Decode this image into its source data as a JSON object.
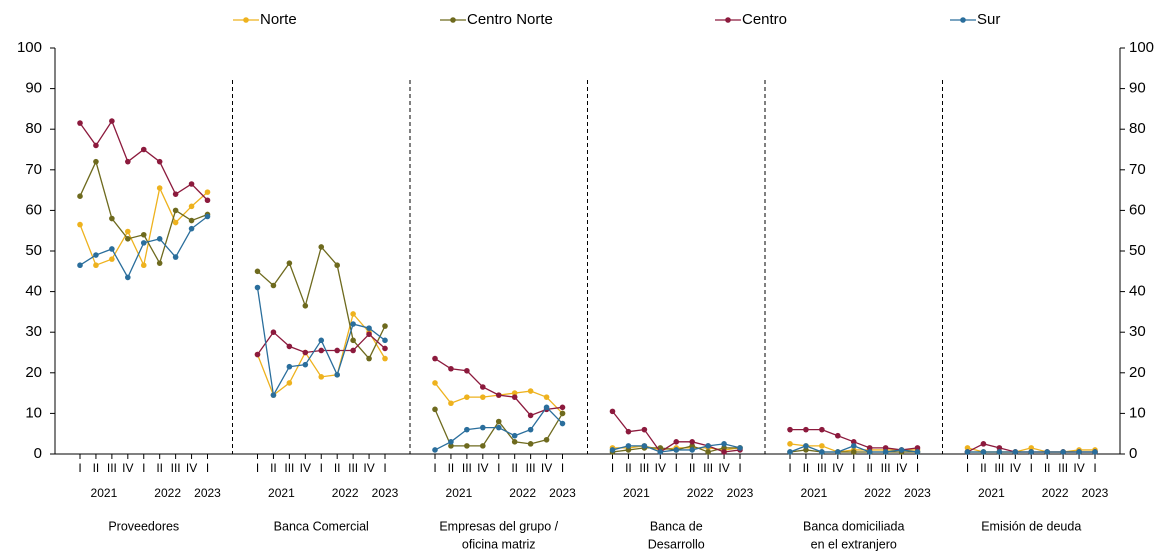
{
  "chart_data": {
    "type": "line",
    "ylim": [
      0,
      100
    ],
    "yticks": [
      0,
      10,
      20,
      30,
      40,
      50,
      60,
      70,
      80,
      90,
      100
    ],
    "y2lim": [
      0,
      100
    ],
    "y2ticks": [
      0,
      10,
      20,
      30,
      40,
      50,
      60,
      70,
      80,
      90,
      100
    ],
    "categories": [
      "I",
      "II",
      "III",
      "IV",
      "I",
      "II",
      "III",
      "IV",
      "I"
    ],
    "years": [
      "2021",
      "2022",
      "2023"
    ],
    "series": [
      {
        "name": "Norte",
        "color": "#eeb21e"
      },
      {
        "name": "Centro Norte",
        "color": "#6e6a1e"
      },
      {
        "name": "Centro",
        "color": "#8c1a3d"
      },
      {
        "name": "Sur",
        "color": "#2a6e9c"
      }
    ],
    "panels": [
      {
        "label": [
          "Proveedores"
        ],
        "values": [
          [
            56.5,
            46.5,
            48,
            54.8,
            46.5,
            65.5,
            57,
            61,
            64.5
          ],
          [
            63.5,
            72,
            58,
            53,
            54,
            47,
            60,
            57.5,
            59
          ],
          [
            81.5,
            76,
            82,
            72,
            75,
            72,
            64,
            66.5,
            62.5
          ],
          [
            46.5,
            49,
            50.5,
            43.5,
            52,
            53,
            48.5,
            55.5,
            58.5
          ]
        ]
      },
      {
        "label": [
          "Banca Comercial"
        ],
        "values": [
          [
            24.5,
            14.5,
            17.5,
            25,
            19,
            19.5,
            34.5,
            30,
            23.5
          ],
          [
            45,
            41.5,
            47,
            36.5,
            51,
            46.5,
            28,
            23.5,
            31.5
          ],
          [
            24.5,
            30,
            26.5,
            25,
            25.5,
            25.5,
            25.5,
            29.5,
            26
          ],
          [
            41,
            14.5,
            21.5,
            22,
            28,
            19.5,
            32,
            31,
            28
          ]
        ]
      },
      {
        "label": [
          "Empresas del grupo /",
          "oficina matriz"
        ],
        "values": [
          [
            17.5,
            12.5,
            14,
            14,
            14.5,
            15,
            15.5,
            14,
            10
          ],
          [
            11,
            2,
            2,
            2,
            8,
            3,
            2.5,
            3.5,
            10
          ],
          [
            23.5,
            21,
            20.5,
            16.5,
            14.5,
            14,
            9.5,
            11,
            11.5
          ],
          [
            1,
            3,
            6,
            6.5,
            6.5,
            4.5,
            6,
            11.5,
            7.5
          ]
        ]
      },
      {
        "label": [
          "Banca de",
          "Desarrollo"
        ],
        "values": [
          [
            1.5,
            1.5,
            2,
            1,
            1.5,
            1.5,
            1.5,
            1,
            1.5
          ],
          [
            0.5,
            1,
            1.5,
            1.5,
            1,
            2,
            0.5,
            1.5,
            1.5
          ],
          [
            10.5,
            5.5,
            6,
            0.5,
            3,
            3,
            2,
            0.5,
            1
          ],
          [
            1,
            2,
            2,
            0.5,
            1,
            1,
            2,
            2.5,
            1.5
          ]
        ]
      },
      {
        "label": [
          "Banca domiciliada",
          "en el extranjero"
        ],
        "values": [
          [
            2.5,
            2,
            2,
            0.5,
            1,
            1,
            1,
            1,
            1
          ],
          [
            0.5,
            1,
            0.5,
            0.5,
            0.5,
            0.5,
            0.5,
            0.5,
            0.5
          ],
          [
            6,
            6,
            6,
            4.5,
            3,
            1.5,
            1.5,
            1,
            1.5
          ],
          [
            0.5,
            2,
            0.5,
            0.5,
            2,
            0.5,
            0.5,
            1,
            0.5
          ]
        ]
      },
      {
        "label": [
          "Emisión de deuda"
        ],
        "values": [
          [
            1.5,
            0.5,
            0.5,
            0.5,
            1.5,
            0.5,
            0.5,
            1,
            1
          ],
          [
            0.5,
            0.5,
            0.5,
            0.5,
            0.5,
            0.5,
            0.5,
            0.5,
            0.5
          ],
          [
            0.5,
            2.5,
            1.5,
            0.5,
            0.5,
            0.5,
            0.5,
            0.5,
            0.5
          ],
          [
            0.5,
            0.5,
            0.5,
            0.5,
            0.5,
            0.5,
            0.5,
            0.5,
            0.5
          ]
        ]
      }
    ]
  }
}
